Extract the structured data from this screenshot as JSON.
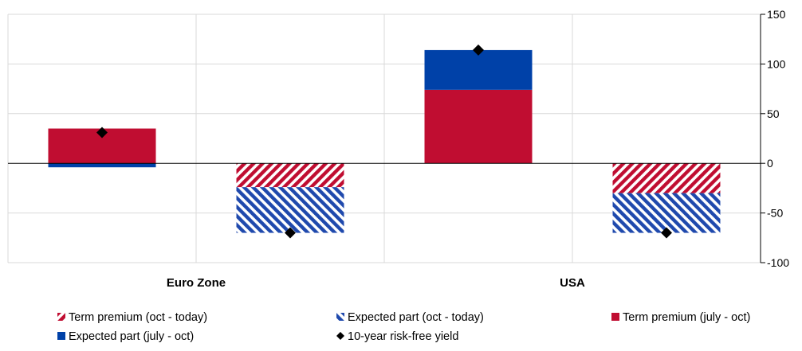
{
  "chart_data": {
    "type": "bar",
    "stacked": true,
    "categories": [
      "Euro Zone",
      "USA"
    ],
    "groups": [
      {
        "category": "Euro Zone",
        "period": "july - oct",
        "segments": {
          "term_premium_july_oct": 35,
          "expected_part_july_oct": -4
        },
        "yield": 31
      },
      {
        "category": "Euro Zone",
        "period": "oct - today",
        "segments": {
          "term_premium_oct_today": -24,
          "expected_part_oct_today": -46
        },
        "yield": -70
      },
      {
        "category": "USA",
        "period": "july - oct",
        "segments": {
          "term_premium_july_oct": 74,
          "expected_part_july_oct": 40
        },
        "yield": 114
      },
      {
        "category": "USA",
        "period": "oct - today",
        "segments": {
          "term_premium_oct_today": -30,
          "expected_part_oct_today": -40
        },
        "yield": -70
      }
    ],
    "series": [
      {
        "key": "term_premium_oct_today",
        "name": "Term premium (oct - today)",
        "color": "#c00d31",
        "pattern": "hatch-red"
      },
      {
        "key": "expected_part_oct_today",
        "name": "Expected part (oct - today)",
        "color": "#1f49ad",
        "pattern": "hatch-blue"
      },
      {
        "key": "term_premium_july_oct",
        "name": "Term premium (july - oct)",
        "color": "#c00d31",
        "pattern": "solid"
      },
      {
        "key": "expected_part_july_oct",
        "name": "Expected part (july - oct)",
        "color": "#0041a8",
        "pattern": "solid"
      },
      {
        "key": "yield",
        "name": "10-year risk-free yield",
        "color": "#000000",
        "marker": "diamond"
      }
    ],
    "ylim": [
      -100,
      150
    ],
    "yticks": [
      -100,
      -50,
      0,
      50,
      100,
      150
    ],
    "y_axis_side": "right",
    "grid": true,
    "legend_position": "bottom"
  }
}
